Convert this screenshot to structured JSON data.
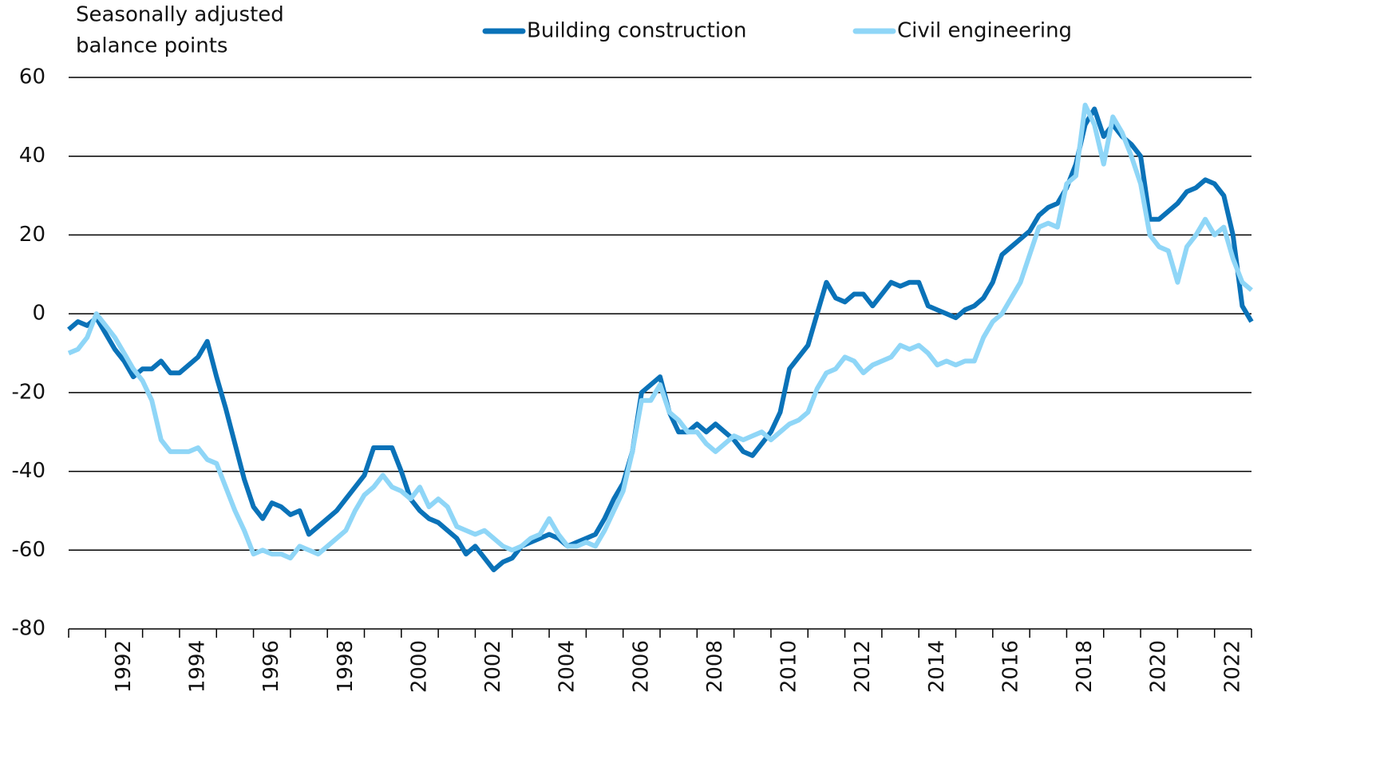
{
  "chart_data": {
    "type": "line",
    "ylabel_lines": [
      "Seasonally adjusted",
      "balance points"
    ],
    "x": [
      1991,
      1991.25,
      1991.5,
      1991.75,
      1992,
      1992.25,
      1992.5,
      1992.75,
      1993,
      1993.25,
      1993.5,
      1993.75,
      1994,
      1994.25,
      1994.5,
      1994.75,
      1995,
      1995.25,
      1995.5,
      1995.75,
      1996,
      1996.25,
      1996.5,
      1996.75,
      1997,
      1997.25,
      1997.5,
      1997.75,
      1998,
      1998.25,
      1998.5,
      1998.75,
      1999,
      1999.25,
      1999.5,
      1999.75,
      2000,
      2000.25,
      2000.5,
      2000.75,
      2001,
      2001.25,
      2001.5,
      2001.75,
      2002,
      2002.25,
      2002.5,
      2002.75,
      2003,
      2003.25,
      2003.5,
      2003.75,
      2004,
      2004.25,
      2004.5,
      2004.75,
      2005,
      2005.25,
      2005.5,
      2005.75,
      2006,
      2006.25,
      2006.5,
      2006.75,
      2007,
      2007.25,
      2007.5,
      2007.75,
      2008,
      2008.25,
      2008.5,
      2008.75,
      2009,
      2009.25,
      2009.5,
      2009.75,
      2010,
      2010.25,
      2010.5,
      2010.75,
      2011,
      2011.25,
      2011.5,
      2011.75,
      2012,
      2012.25,
      2012.5,
      2012.75,
      2013,
      2013.25,
      2013.5,
      2013.75,
      2014,
      2014.25,
      2014.5,
      2014.75,
      2015,
      2015.25,
      2015.5,
      2015.75,
      2016,
      2016.25,
      2016.5,
      2016.75,
      2017,
      2017.25,
      2017.5,
      2017.75,
      2018,
      2018.25,
      2018.5,
      2018.75,
      2019,
      2019.25,
      2019.5,
      2019.75,
      2020,
      2020.25,
      2020.5,
      2020.75,
      2021,
      2021.25,
      2021.5,
      2021.75,
      2022,
      2022.25,
      2022.5,
      2022.75,
      2023
    ],
    "series": [
      {
        "name": "Building construction",
        "color": "#0a72b8",
        "values": [
          -4,
          -2,
          -3,
          -1,
          -5,
          -9,
          -12,
          -16,
          -14,
          -14,
          -12,
          -15,
          -15,
          -13,
          -11,
          -7,
          -16,
          -24,
          -33,
          -42,
          -49,
          -52,
          -48,
          -49,
          -51,
          -50,
          -56,
          -54,
          -52,
          -50,
          -47,
          -44,
          -41,
          -34,
          -34,
          -34,
          -40,
          -47,
          -50,
          -52,
          -53,
          -55,
          -57,
          -61,
          -59,
          -62,
          -65,
          -63,
          -62,
          -59,
          -58,
          -57,
          -56,
          -57,
          -59,
          -58,
          -57,
          -56,
          -52,
          -47,
          -43,
          -35,
          -20,
          -18,
          -16,
          -25,
          -30,
          -30,
          -28,
          -30,
          -28,
          -30,
          -32,
          -35,
          -36,
          -33,
          -30,
          -25,
          -14,
          -11,
          -8,
          0,
          8,
          4,
          3,
          5,
          5,
          2,
          5,
          8,
          7,
          8,
          8,
          2,
          1,
          0,
          -1,
          1,
          2,
          4,
          8,
          15,
          17,
          19,
          21,
          25,
          27,
          28,
          32,
          38,
          48,
          52,
          45,
          48,
          45,
          43,
          40,
          24,
          24,
          26,
          28,
          31,
          32,
          34,
          33,
          30,
          20,
          2,
          -2
        ]
      },
      {
        "name": "Civil engineering",
        "color": "#8fd6f7",
        "values": [
          -10,
          -9,
          -6,
          0,
          -3,
          -6,
          -10,
          -14,
          -17,
          -22,
          -32,
          -35,
          -35,
          -35,
          -34,
          -37,
          -38,
          -44,
          -50,
          -55,
          -61,
          -60,
          -61,
          -61,
          -62,
          -59,
          -60,
          -61,
          -59,
          -57,
          -55,
          -50,
          -46,
          -44,
          -41,
          -44,
          -45,
          -47,
          -44,
          -49,
          -47,
          -49,
          -54,
          -55,
          -56,
          -55,
          -57,
          -59,
          -60,
          -59,
          -57,
          -56,
          -52,
          -56,
          -59,
          -59,
          -58,
          -59,
          -55,
          -50,
          -45,
          -35,
          -22,
          -22,
          -18,
          -25,
          -27,
          -30,
          -30,
          -33,
          -35,
          -33,
          -31,
          -32,
          -31,
          -30,
          -32,
          -30,
          -28,
          -27,
          -25,
          -19,
          -15,
          -14,
          -11,
          -12,
          -15,
          -13,
          -12,
          -11,
          -8,
          -9,
          -8,
          -10,
          -13,
          -12,
          -13,
          -12,
          -12,
          -6,
          -2,
          0,
          4,
          8,
          15,
          22,
          23,
          22,
          33,
          35,
          53,
          48,
          38,
          50,
          46,
          40,
          33,
          20,
          17,
          16,
          8,
          17,
          20,
          24,
          20,
          22,
          14,
          8,
          6
        ]
      }
    ],
    "xlim": [
      1991,
      2023
    ],
    "xminor_ticks": [
      1991,
      1992,
      1993,
      1994,
      1995,
      1996,
      1997,
      1998,
      1999,
      2000,
      2001,
      2002,
      2003,
      2004,
      2005,
      2006,
      2007,
      2008,
      2009,
      2010,
      2011,
      2012,
      2013,
      2014,
      2015,
      2016,
      2017,
      2018,
      2019,
      2020,
      2021,
      2022,
      2023
    ],
    "xticks": [
      {
        "value": 1992.5,
        "label": "1992"
      },
      {
        "value": 1994.5,
        "label": "1994"
      },
      {
        "value": 1996.5,
        "label": "1996"
      },
      {
        "value": 1998.5,
        "label": "1998"
      },
      {
        "value": 2000.5,
        "label": "2000"
      },
      {
        "value": 2002.5,
        "label": "2002"
      },
      {
        "value": 2004.5,
        "label": "2004"
      },
      {
        "value": 2006.5,
        "label": "2006"
      },
      {
        "value": 2008.5,
        "label": "2008"
      },
      {
        "value": 2010.5,
        "label": "2010"
      },
      {
        "value": 2012.5,
        "label": "2012"
      },
      {
        "value": 2014.5,
        "label": "2014"
      },
      {
        "value": 2016.5,
        "label": "2016"
      },
      {
        "value": 2018.5,
        "label": "2018"
      },
      {
        "value": 2020.5,
        "label": "2020"
      },
      {
        "value": 2022.5,
        "label": "2022"
      }
    ],
    "ylim": [
      -80,
      60
    ],
    "yticks": [
      -80,
      -60,
      -40,
      -20,
      0,
      20,
      40,
      60
    ],
    "grid": true
  }
}
